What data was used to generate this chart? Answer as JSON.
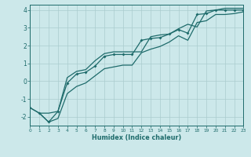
{
  "xlabel": "Humidex (Indice chaleur)",
  "bg_color": "#cce8ea",
  "grid_color": "#aaccce",
  "line_color": "#1e6b6b",
  "xlim": [
    0,
    23
  ],
  "ylim": [
    -2.5,
    4.3
  ],
  "xticks": [
    0,
    1,
    2,
    3,
    4,
    5,
    6,
    7,
    8,
    9,
    10,
    11,
    12,
    13,
    14,
    15,
    16,
    17,
    18,
    19,
    20,
    21,
    22,
    23
  ],
  "yticks": [
    -2,
    -1,
    0,
    1,
    2,
    3,
    4
  ],
  "line_mid_x": [
    0,
    1,
    2,
    3,
    4,
    5,
    6,
    7,
    8,
    9,
    10,
    11,
    12,
    13,
    14,
    15,
    16,
    17,
    18,
    19,
    20,
    21,
    22,
    23
  ],
  "line_mid_y": [
    -1.5,
    -1.8,
    -2.3,
    -1.7,
    -0.1,
    0.4,
    0.5,
    0.85,
    1.4,
    1.5,
    1.5,
    1.5,
    2.3,
    2.4,
    2.45,
    2.65,
    2.9,
    2.7,
    3.75,
    3.8,
    4.0,
    4.0,
    4.0,
    4.0
  ],
  "line_up_x": [
    1,
    2,
    3,
    4,
    5,
    6,
    7,
    8,
    9,
    10,
    11,
    12,
    13,
    14,
    15,
    16,
    17,
    18,
    19,
    20,
    21,
    22,
    23
  ],
  "line_up_y": [
    -1.8,
    -1.8,
    -1.7,
    0.2,
    0.55,
    0.65,
    1.15,
    1.55,
    1.65,
    1.65,
    1.65,
    1.65,
    2.5,
    2.6,
    2.65,
    2.95,
    3.2,
    3.05,
    3.95,
    4.0,
    4.1,
    4.1,
    4.1
  ],
  "line_low_x": [
    0,
    1,
    2,
    3,
    4,
    5,
    6,
    7,
    8,
    9,
    10,
    11,
    12,
    13,
    14,
    15,
    16,
    17,
    18,
    19,
    20,
    21,
    22,
    23
  ],
  "line_low_y": [
    -1.5,
    -1.8,
    -2.3,
    -2.1,
    -0.7,
    -0.3,
    -0.1,
    0.3,
    0.7,
    0.8,
    0.9,
    0.9,
    1.6,
    1.8,
    1.95,
    2.2,
    2.55,
    2.3,
    3.3,
    3.4,
    3.75,
    3.75,
    3.8,
    3.9
  ]
}
